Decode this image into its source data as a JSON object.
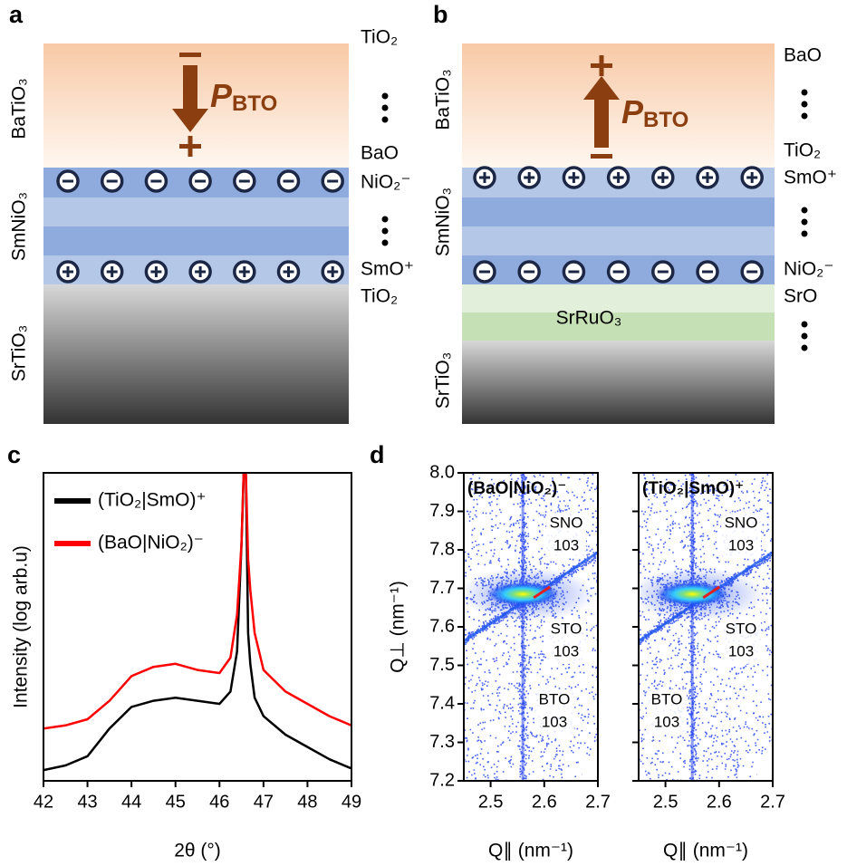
{
  "diagram_a": {
    "label": "a",
    "materials": [
      "BaTiO₃",
      "SmNiO₃",
      "SrTiO₃"
    ],
    "layers": [
      "TiO₂",
      "BaO",
      "NiO₂⁻",
      "SmO⁺",
      "TiO₂"
    ],
    "polarization": {
      "symbol": "P",
      "subscript": "BTO"
    }
  },
  "diagram_b": {
    "label": "b",
    "materials": [
      "BaTiO₃",
      "SmNiO₃",
      "SrTiO₃"
    ],
    "layers": [
      "BaO",
      "TiO₂",
      "SmO⁺",
      "NiO₂⁻",
      "SrO"
    ],
    "electrode": "SrRuO₃",
    "polarization": {
      "symbol": "P",
      "subscript": "BTO"
    }
  },
  "chart_data": [
    {
      "type": "line",
      "panel_label": "c",
      "xlabel": "2θ (°)",
      "ylabel": "Intensity (log arb.u)",
      "x": [
        42,
        42.5,
        43,
        43.5,
        44,
        44.5,
        45,
        45.5,
        46,
        46.25,
        46.4,
        46.5,
        46.55,
        46.6,
        46.65,
        46.7,
        46.8,
        47,
        47.5,
        48,
        48.5,
        49
      ],
      "series": [
        {
          "name": "(TiO₂|SmO)⁺",
          "color": "#000000",
          "values": [
            3.5,
            5,
            8,
            17,
            24,
            26,
            27,
            26,
            25,
            29,
            42,
            77,
            100,
            100,
            48,
            38,
            27,
            21,
            15,
            11,
            7,
            4
          ]
        },
        {
          "name": "(BaO|NiO₂)⁻",
          "color": "#ff0000",
          "values": [
            17,
            18,
            20,
            26,
            34,
            37,
            38,
            36,
            35,
            40,
            54,
            77,
            100,
            100,
            72,
            62,
            48,
            36,
            29,
            25,
            21,
            18
          ]
        }
      ],
      "xlim": [
        42,
        49
      ],
      "xticks": [
        42,
        43,
        44,
        45,
        46,
        47,
        48,
        49
      ],
      "ylim": [
        0,
        100
      ],
      "legend": "upper left"
    },
    {
      "type": "rsm",
      "panel_label": "d",
      "title": "(BaO|NiO₂)⁻",
      "xlabel": "Q∥ (nm⁻¹)",
      "ylabel": "Q⊥ (nm⁻¹)",
      "xlim": [
        2.45,
        2.7
      ],
      "xticks": [
        2.5,
        2.6,
        2.7
      ],
      "ylim": [
        7.2,
        8.0
      ],
      "yticks": [
        {
          "value": 7.2,
          "label": "7.2"
        },
        7.3,
        7.4,
        7.5,
        7.6,
        7.7,
        7.8,
        7.9,
        {
          "value": 8,
          "label": "8.0"
        }
      ],
      "peak": {
        "x": 2.56,
        "y": 7.685
      },
      "annotations": [
        {
          "text": "SNO",
          "order": "103"
        },
        {
          "text": "STO",
          "order": "103"
        },
        {
          "text": "BTO",
          "order": "103"
        }
      ]
    },
    {
      "type": "rsm",
      "title": "(TiO₂|SmO)⁺",
      "xlabel": "Q∥ (nm⁻¹)",
      "xlim": [
        2.45,
        2.7
      ],
      "xticks": [
        2.5,
        2.6,
        2.7
      ],
      "ylim": [
        7.2,
        8.0
      ],
      "peak": {
        "x": 2.55,
        "y": 7.685
      },
      "annotations": [
        {
          "text": "SNO",
          "order": "103"
        },
        {
          "text": "STO",
          "order": "103"
        },
        {
          "text": "BTO",
          "order": "103"
        }
      ]
    }
  ]
}
